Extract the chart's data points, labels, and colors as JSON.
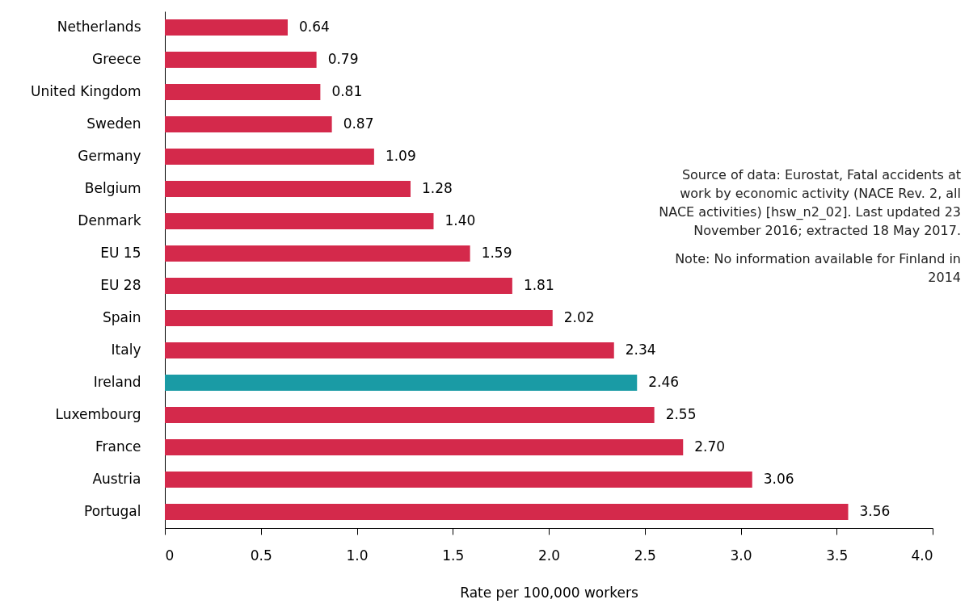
{
  "chart_data": {
    "type": "bar",
    "orientation": "horizontal",
    "categories": [
      "Netherlands",
      "Greece",
      "United Kingdom",
      "Sweden",
      "Germany",
      "Belgium",
      "Denmark",
      "EU 15",
      "EU 28",
      "Spain",
      "Italy",
      "Ireland",
      "Luxembourg",
      "France",
      "Austria",
      "Portugal"
    ],
    "values": [
      0.64,
      0.79,
      0.81,
      0.87,
      1.09,
      1.28,
      1.4,
      1.59,
      1.81,
      2.02,
      2.34,
      2.46,
      2.55,
      2.7,
      3.06,
      3.56
    ],
    "value_labels": [
      "0.64",
      "0.79",
      "0.81",
      "0.87",
      "1.09",
      "1.28",
      "1.40",
      "1.59",
      "1.81",
      "2.02",
      "2.34",
      "2.46",
      "2.55",
      "2.70",
      "3.06",
      "3.56"
    ],
    "colors": [
      "#d4294b",
      "#d4294b",
      "#d4294b",
      "#d4294b",
      "#d4294b",
      "#d4294b",
      "#d4294b",
      "#d4294b",
      "#d4294b",
      "#d4294b",
      "#d4294b",
      "#1a9ba5",
      "#d4294b",
      "#d4294b",
      "#d4294b",
      "#d4294b"
    ],
    "xlim": [
      0,
      4
    ],
    "xticks": [
      0,
      0.5,
      {
        "value": 1,
        "label": "1.0"
      },
      1.5,
      {
        "value": 2,
        "label": "2.0"
      },
      2.5,
      {
        "value": 3,
        "label": "3.0"
      },
      3.5,
      {
        "value": 4,
        "label": "4.0"
      }
    ],
    "xlabel": "Rate per 100,000 workers",
    "grid": false,
    "annotations": [
      "Source of data: Eurostat, Fatal accidents at work by economic activity (NACE Rev. 2, all NACE activities) [hsw_n2_02]. Last updated 23 November 2016; extracted 18 May 2017.",
      "Note: No information available for Finland in 2014"
    ]
  }
}
